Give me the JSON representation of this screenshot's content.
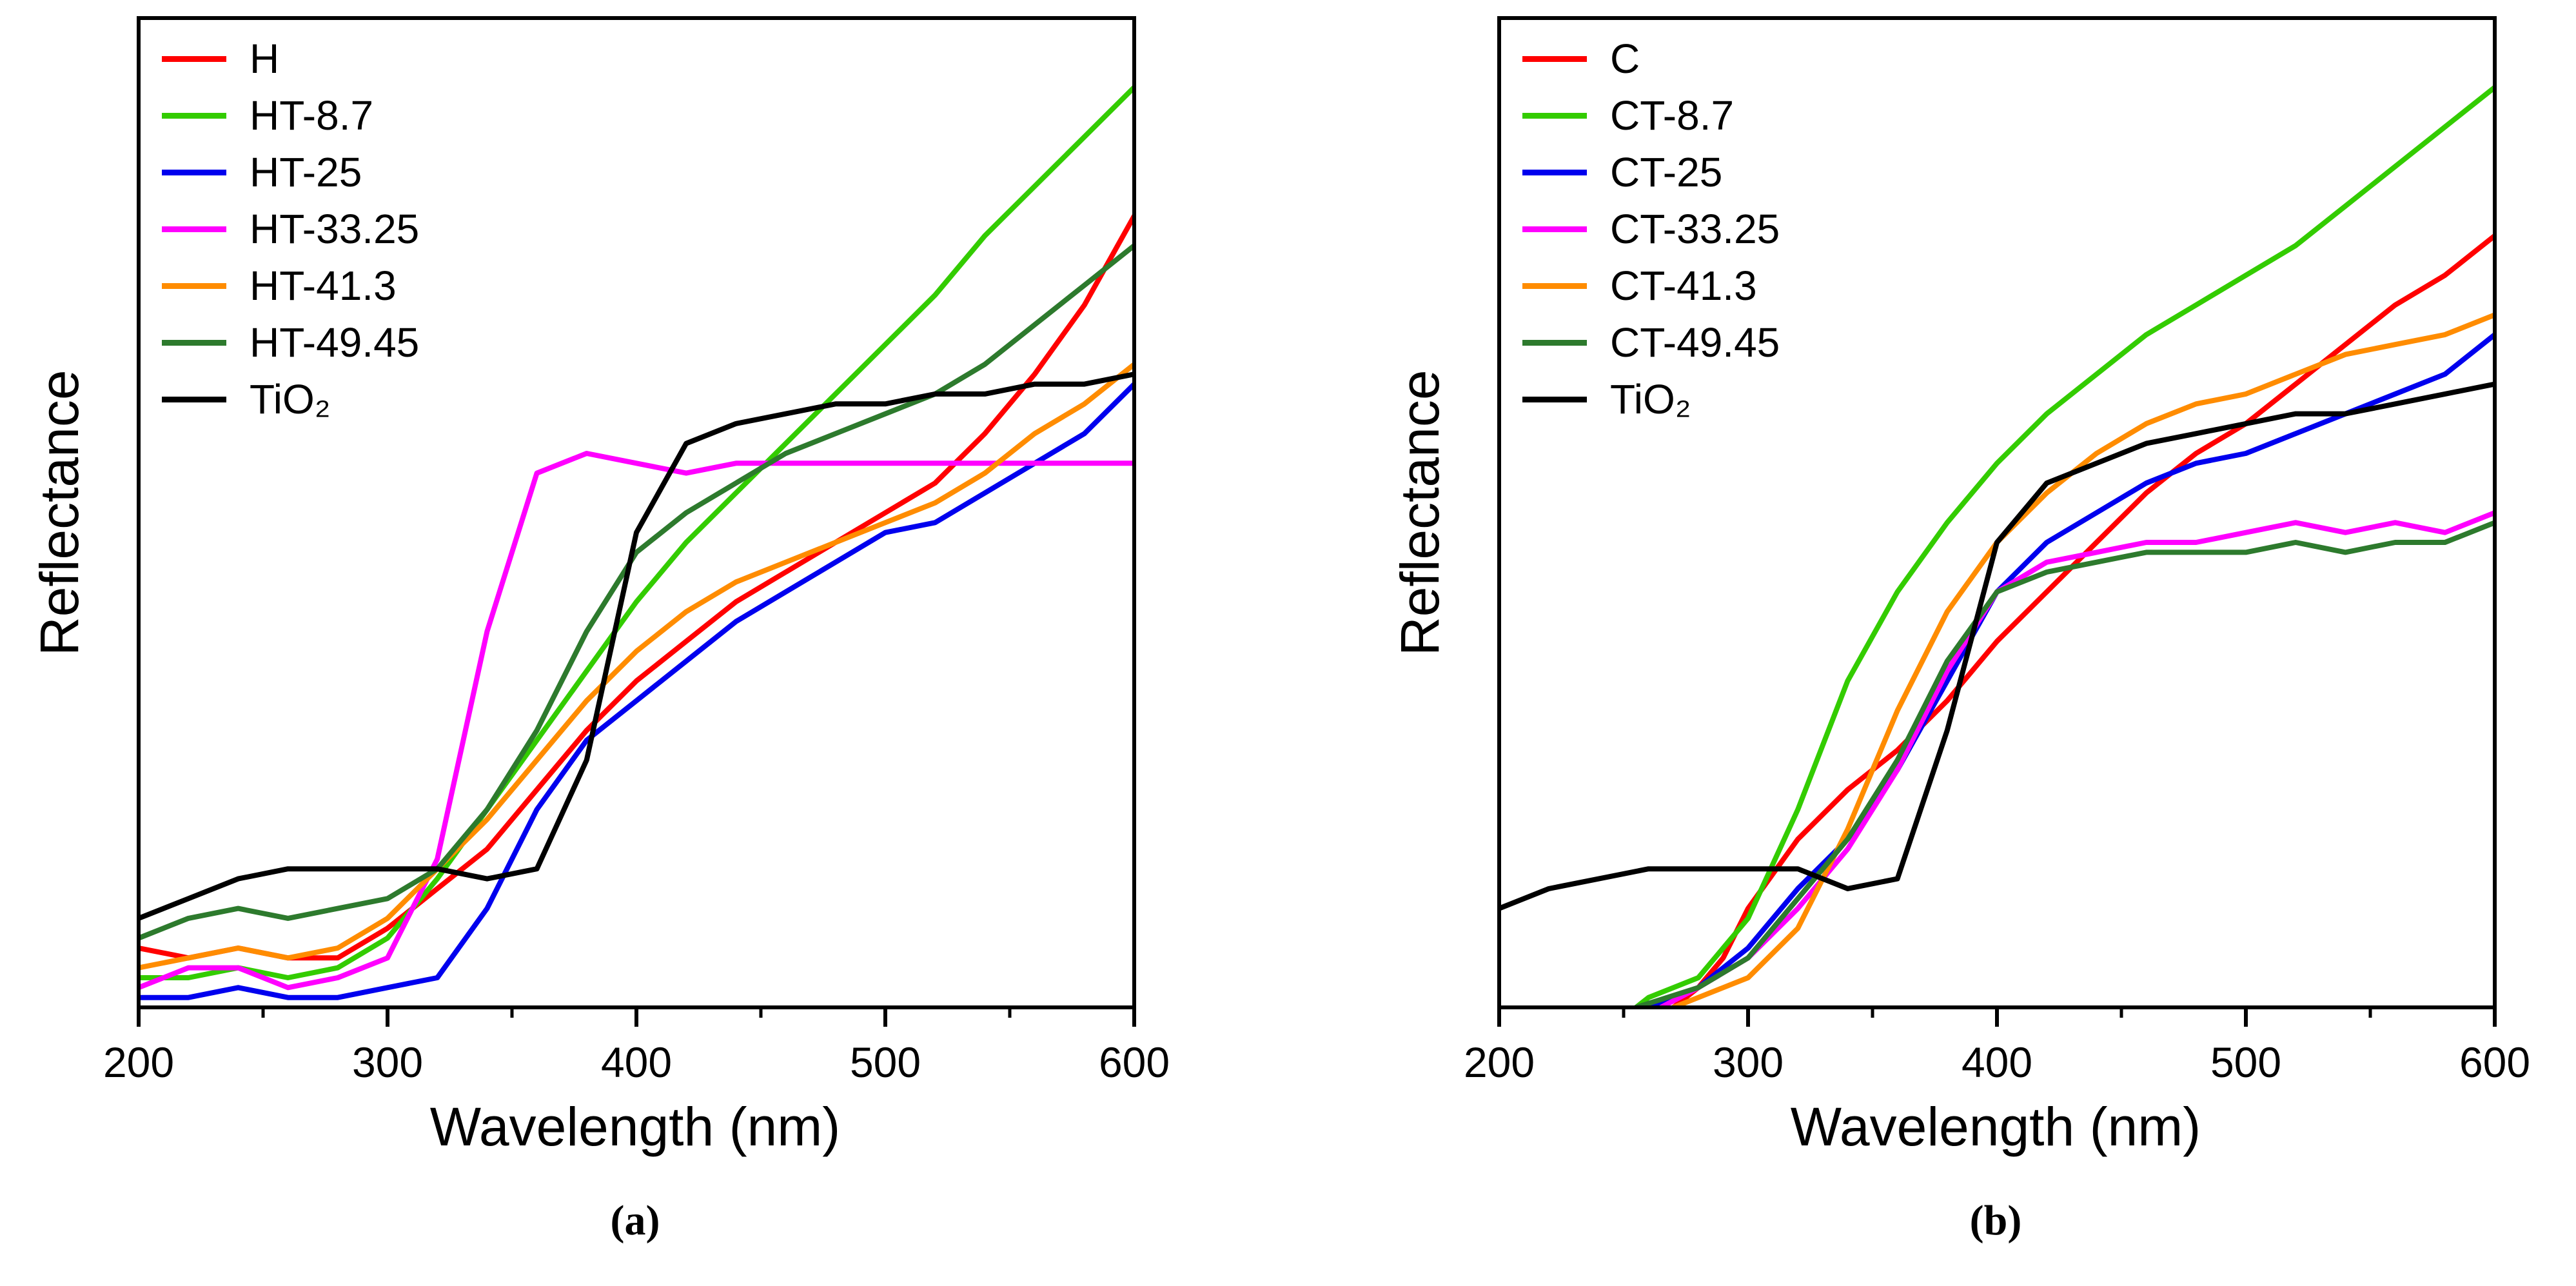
{
  "figure": {
    "background": "#ffffff"
  },
  "chart_data": [
    {
      "id": "a",
      "type": "line",
      "caption": "(a)",
      "xlabel": "Wavelength (nm)",
      "ylabel": "Reflectance",
      "xlim": [
        200,
        600
      ],
      "ylim": [
        0,
        1
      ],
      "xticks": [
        200,
        300,
        400,
        500,
        600
      ],
      "grid": false,
      "legend_position": "top-left-inside",
      "series": [
        {
          "name": "H",
          "color": "#ff0000",
          "x": [
            200,
            220,
            240,
            260,
            280,
            300,
            320,
            340,
            360,
            380,
            400,
            420,
            440,
            460,
            480,
            500,
            520,
            540,
            560,
            580,
            600
          ],
          "y": [
            0.06,
            0.05,
            0.06,
            0.05,
            0.05,
            0.08,
            0.12,
            0.16,
            0.22,
            0.28,
            0.33,
            0.37,
            0.41,
            0.44,
            0.47,
            0.5,
            0.53,
            0.58,
            0.64,
            0.71,
            0.8
          ]
        },
        {
          "name": "HT-8.7",
          "color": "#33cc00",
          "x": [
            200,
            220,
            240,
            260,
            280,
            300,
            320,
            340,
            360,
            380,
            400,
            420,
            440,
            460,
            480,
            500,
            520,
            540,
            560,
            580,
            600
          ],
          "y": [
            0.03,
            0.03,
            0.04,
            0.03,
            0.04,
            0.07,
            0.13,
            0.2,
            0.27,
            0.34,
            0.41,
            0.47,
            0.52,
            0.57,
            0.62,
            0.67,
            0.72,
            0.78,
            0.83,
            0.88,
            0.93
          ]
        },
        {
          "name": "HT-25",
          "color": "#0000ee",
          "x": [
            200,
            220,
            240,
            260,
            280,
            300,
            320,
            340,
            360,
            380,
            400,
            420,
            440,
            460,
            480,
            500,
            520,
            540,
            560,
            580,
            600
          ],
          "y": [
            0.01,
            0.01,
            0.02,
            0.01,
            0.01,
            0.02,
            0.03,
            0.1,
            0.2,
            0.27,
            0.31,
            0.35,
            0.39,
            0.42,
            0.45,
            0.48,
            0.49,
            0.52,
            0.55,
            0.58,
            0.63
          ]
        },
        {
          "name": "HT-33.25",
          "color": "#ff00ff",
          "x": [
            200,
            220,
            240,
            260,
            280,
            300,
            320,
            340,
            360,
            380,
            400,
            420,
            440,
            460,
            480,
            500,
            520,
            540,
            560,
            580,
            600
          ],
          "y": [
            0.02,
            0.04,
            0.04,
            0.02,
            0.03,
            0.05,
            0.15,
            0.38,
            0.54,
            0.56,
            0.55,
            0.54,
            0.55,
            0.55,
            0.55,
            0.55,
            0.55,
            0.55,
            0.55,
            0.55,
            0.55
          ]
        },
        {
          "name": "HT-41.3",
          "color": "#ff8c00",
          "x": [
            200,
            220,
            240,
            260,
            280,
            300,
            320,
            340,
            360,
            380,
            400,
            420,
            440,
            460,
            480,
            500,
            520,
            540,
            560,
            580,
            600
          ],
          "y": [
            0.04,
            0.05,
            0.06,
            0.05,
            0.06,
            0.09,
            0.14,
            0.19,
            0.25,
            0.31,
            0.36,
            0.4,
            0.43,
            0.45,
            0.47,
            0.49,
            0.51,
            0.54,
            0.58,
            0.61,
            0.65
          ]
        },
        {
          "name": "HT-49.45",
          "color": "#2d7a2d",
          "x": [
            200,
            220,
            240,
            260,
            280,
            300,
            320,
            340,
            360,
            380,
            400,
            420,
            440,
            460,
            480,
            500,
            520,
            540,
            560,
            580,
            600
          ],
          "y": [
            0.07,
            0.09,
            0.1,
            0.09,
            0.1,
            0.11,
            0.14,
            0.2,
            0.28,
            0.38,
            0.46,
            0.5,
            0.53,
            0.56,
            0.58,
            0.6,
            0.62,
            0.65,
            0.69,
            0.73,
            0.77
          ]
        },
        {
          "name": "TiO₂",
          "color": "#000000",
          "x": [
            200,
            220,
            240,
            260,
            280,
            300,
            320,
            340,
            360,
            380,
            400,
            420,
            440,
            460,
            480,
            500,
            520,
            540,
            560,
            580,
            600
          ],
          "y": [
            0.09,
            0.11,
            0.13,
            0.14,
            0.14,
            0.14,
            0.14,
            0.13,
            0.14,
            0.25,
            0.48,
            0.57,
            0.59,
            0.6,
            0.61,
            0.61,
            0.62,
            0.62,
            0.63,
            0.63,
            0.64
          ]
        }
      ]
    },
    {
      "id": "b",
      "type": "line",
      "caption": "(b)",
      "xlabel": "Wavelength (nm)",
      "ylabel": "Reflectance",
      "xlim": [
        200,
        600
      ],
      "ylim": [
        0,
        1
      ],
      "xticks": [
        200,
        300,
        400,
        500,
        600
      ],
      "grid": false,
      "legend_position": "top-left-inside",
      "series": [
        {
          "name": "C",
          "color": "#ff0000",
          "x": [
            270,
            280,
            290,
            300,
            320,
            340,
            360,
            380,
            400,
            420,
            440,
            460,
            480,
            500,
            520,
            540,
            560,
            580,
            600
          ],
          "y": [
            0.0,
            0.02,
            0.05,
            0.1,
            0.17,
            0.22,
            0.26,
            0.31,
            0.37,
            0.42,
            0.47,
            0.52,
            0.56,
            0.59,
            0.63,
            0.67,
            0.71,
            0.74,
            0.78
          ]
        },
        {
          "name": "CT-8.7",
          "color": "#33cc00",
          "x": [
            255,
            260,
            280,
            300,
            320,
            340,
            360,
            380,
            400,
            420,
            440,
            460,
            480,
            500,
            520,
            540,
            560,
            580,
            600
          ],
          "y": [
            0.0,
            0.01,
            0.03,
            0.09,
            0.2,
            0.33,
            0.42,
            0.49,
            0.55,
            0.6,
            0.64,
            0.68,
            0.71,
            0.74,
            0.77,
            0.81,
            0.85,
            0.89,
            0.93
          ]
        },
        {
          "name": "CT-25",
          "color": "#0000ee",
          "x": [
            260,
            280,
            300,
            320,
            340,
            360,
            380,
            400,
            420,
            440,
            460,
            480,
            500,
            520,
            540,
            560,
            580,
            600
          ],
          "y": [
            0.0,
            0.02,
            0.06,
            0.12,
            0.17,
            0.24,
            0.33,
            0.42,
            0.47,
            0.5,
            0.53,
            0.55,
            0.56,
            0.58,
            0.6,
            0.62,
            0.64,
            0.68
          ]
        },
        {
          "name": "CT-33.25",
          "color": "#ff00ff",
          "x": [
            265,
            280,
            300,
            320,
            340,
            360,
            380,
            400,
            420,
            440,
            460,
            480,
            500,
            520,
            540,
            560,
            580,
            600
          ],
          "y": [
            0.0,
            0.02,
            0.05,
            0.1,
            0.16,
            0.24,
            0.34,
            0.42,
            0.45,
            0.46,
            0.47,
            0.47,
            0.48,
            0.49,
            0.48,
            0.49,
            0.48,
            0.5
          ]
        },
        {
          "name": "CT-41.3",
          "color": "#ff8c00",
          "x": [
            270,
            280,
            300,
            320,
            340,
            360,
            380,
            400,
            420,
            440,
            460,
            480,
            500,
            520,
            540,
            560,
            580,
            600
          ],
          "y": [
            0.0,
            0.01,
            0.03,
            0.08,
            0.18,
            0.3,
            0.4,
            0.47,
            0.52,
            0.56,
            0.59,
            0.61,
            0.62,
            0.64,
            0.66,
            0.67,
            0.68,
            0.7
          ]
        },
        {
          "name": "CT-49.45",
          "color": "#2d7a2d",
          "x": [
            255,
            280,
            300,
            320,
            340,
            360,
            380,
            400,
            420,
            440,
            460,
            480,
            500,
            520,
            540,
            560,
            580,
            600
          ],
          "y": [
            0.0,
            0.02,
            0.05,
            0.11,
            0.17,
            0.25,
            0.35,
            0.42,
            0.44,
            0.45,
            0.46,
            0.46,
            0.46,
            0.47,
            0.46,
            0.47,
            0.47,
            0.49
          ]
        },
        {
          "name": "TiO₂",
          "color": "#000000",
          "x": [
            200,
            220,
            240,
            260,
            280,
            300,
            320,
            340,
            360,
            380,
            400,
            420,
            440,
            460,
            480,
            500,
            520,
            540,
            560,
            580,
            600
          ],
          "y": [
            0.1,
            0.12,
            0.13,
            0.14,
            0.14,
            0.14,
            0.14,
            0.12,
            0.13,
            0.28,
            0.47,
            0.53,
            0.55,
            0.57,
            0.58,
            0.59,
            0.6,
            0.6,
            0.61,
            0.62,
            0.63
          ]
        }
      ]
    }
  ]
}
